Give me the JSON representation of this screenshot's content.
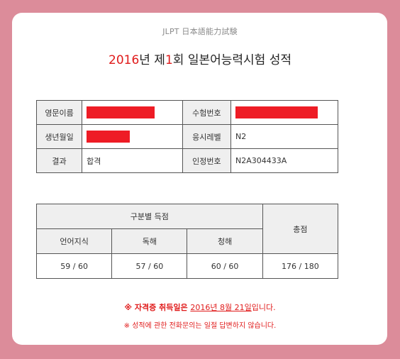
{
  "header": {
    "subtitle": "JLPT 日本語能力試験",
    "title_year": "2016",
    "title_part1": "년 제",
    "title_round": "1",
    "title_part2": "회 일본어능력시험 성적"
  },
  "info": {
    "name_label": "영문이름",
    "exam_no_label": "수험번호",
    "birth_label": "생년월일",
    "level_label": "응시레벨",
    "level_value": "N2",
    "result_label": "결과",
    "result_value": "합격",
    "cert_no_label": "인정번호",
    "cert_no_value": "N2A304433A",
    "redaction_color": "#ee1c25"
  },
  "scores": {
    "section_header": "구분별 득점",
    "total_header": "총점",
    "columns": [
      "언어지식",
      "독해",
      "청해"
    ],
    "values": [
      "59 / 60",
      "57 / 60",
      "60 / 60"
    ],
    "total_value": "176 / 180"
  },
  "notices": {
    "line1_prefix": "※ 자격증 취득일은 ",
    "line1_date": "2016년 8월 21일",
    "line1_suffix": "입니다.",
    "line2": "※ 성적에 관한 전화문의는 일절 답변하지 않습니다."
  },
  "colors": {
    "background": "#dc8c9a",
    "accent_red": "#e01b1b",
    "label_bg": "#efefef"
  }
}
